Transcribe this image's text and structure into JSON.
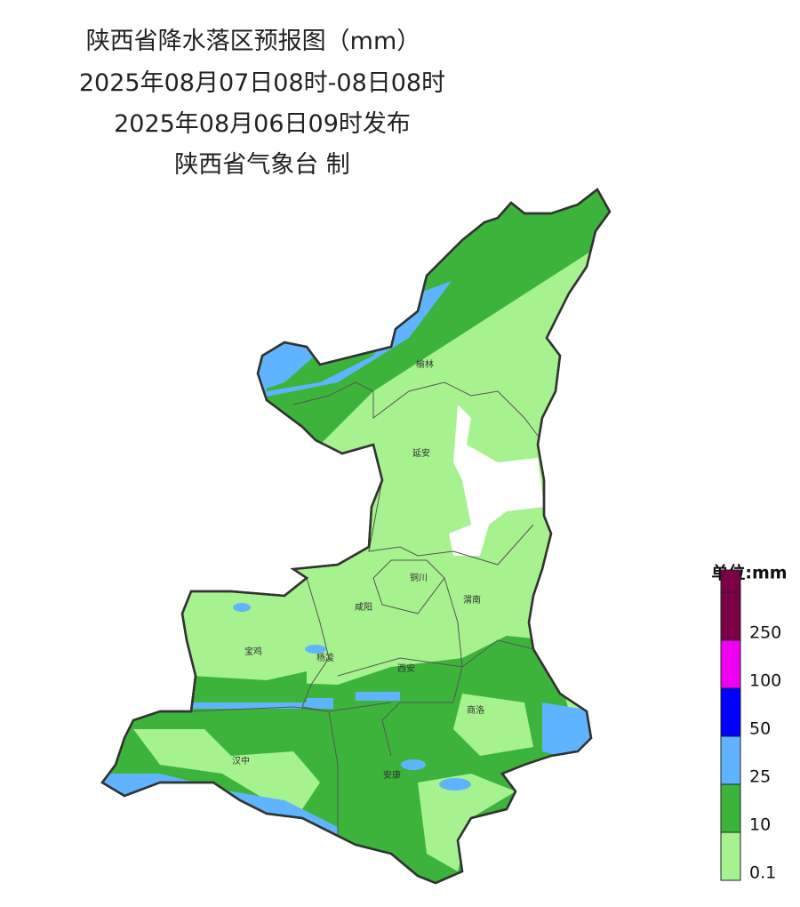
{
  "header": {
    "title": "陕西省降水落区预报图（mm）",
    "period": "2025年08月07日08时-08日08时",
    "issued": "2025年08月06日09时发布",
    "publisher": "陕西省气象台 制"
  },
  "cities": [
    {
      "label": "榆林"
    },
    {
      "label": "延安"
    },
    {
      "label": "铜川"
    },
    {
      "label": "咸阳"
    },
    {
      "label": "渭南"
    },
    {
      "label": "宝鸡"
    },
    {
      "label": "杨凌"
    },
    {
      "label": "西安"
    },
    {
      "label": "商洛"
    },
    {
      "label": "汉中"
    },
    {
      "label": "安康"
    }
  ],
  "legend": {
    "title": "单位:mm",
    "items": [
      {
        "label": 0.1,
        "color": "#a6f28e"
      },
      {
        "label": 10,
        "color": "#3cb43c"
      },
      {
        "label": 25,
        "color": "#60b4ff"
      },
      {
        "label": 50,
        "color": "#0000fe"
      },
      {
        "label": 100,
        "color": "#f000f0"
      },
      {
        "label": 250,
        "color": "#7b0046"
      }
    ]
  }
}
